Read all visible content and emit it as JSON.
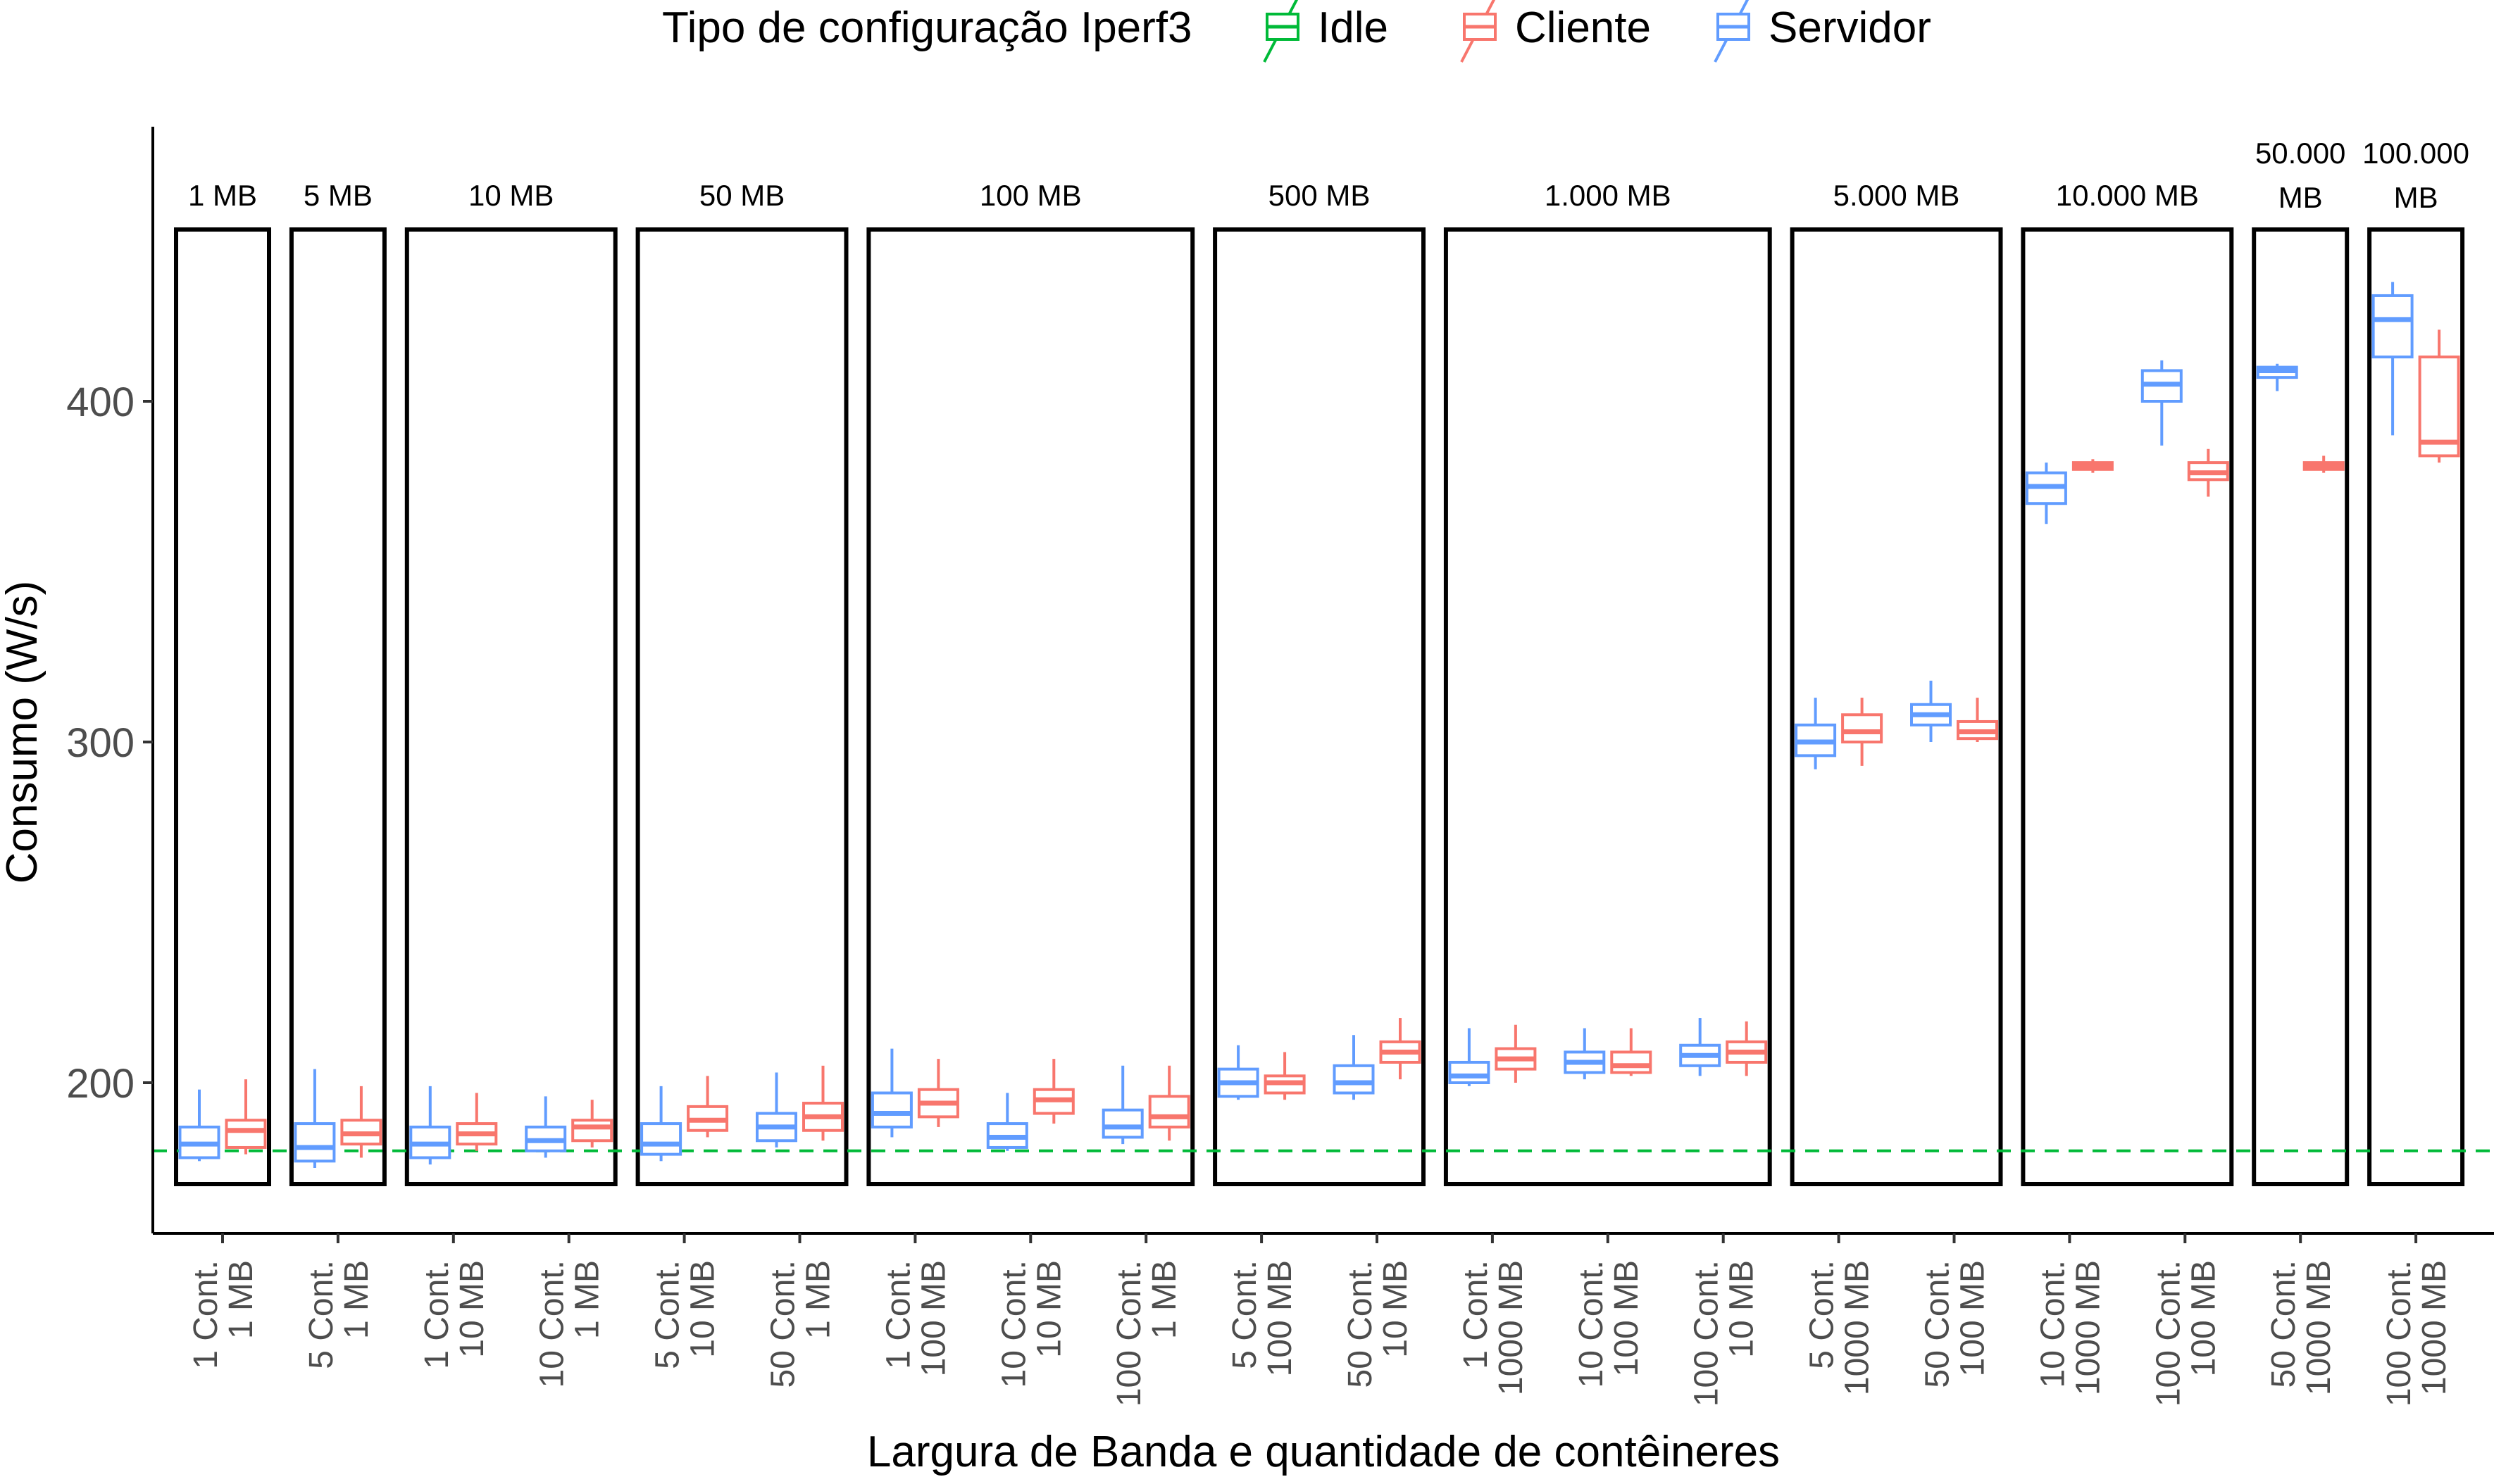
{
  "chart_data": {
    "type": "boxplot",
    "title": "",
    "xlabel": "Largura de Banda e quantidade de contêineres",
    "ylabel": "Consumo (W/s)",
    "y_ticks": [
      200,
      300,
      400
    ],
    "ylim": [
      152,
      478
    ],
    "grid": false,
    "idle_reference": {
      "series": "Idle",
      "value": 180
    },
    "legend": {
      "position": "top",
      "title": "Tipo de configuração Iperf3",
      "entries": [
        {
          "name": "Idle",
          "color": "#00BA38"
        },
        {
          "name": "Cliente",
          "color": "#F8766D"
        },
        {
          "name": "Servidor",
          "color": "#619CFF"
        }
      ]
    },
    "categories": [
      {
        "line1": "1 Cont.",
        "line2": "1 MB"
      },
      {
        "line1": "5 Cont.",
        "line2": "1 MB"
      },
      {
        "line1": "1 Cont.",
        "line2": "10 MB"
      },
      {
        "line1": "10 Cont.",
        "line2": "1 MB"
      },
      {
        "line1": "5 Cont.",
        "line2": "10 MB"
      },
      {
        "line1": "50 Cont.",
        "line2": "1 MB"
      },
      {
        "line1": "1 Cont.",
        "line2": "100 MB"
      },
      {
        "line1": "10 Cont.",
        "line2": "10 MB"
      },
      {
        "line1": "100 Cont.",
        "line2": "1 MB"
      },
      {
        "line1": "5 Cont.",
        "line2": "100 MB"
      },
      {
        "line1": "50 Cont.",
        "line2": "10 MB"
      },
      {
        "line1": "1 Cont.",
        "line2": "1000 MB"
      },
      {
        "line1": "10 Cont.",
        "line2": "100 MB"
      },
      {
        "line1": "100 Cont.",
        "line2": "10 MB"
      },
      {
        "line1": "5 Cont.",
        "line2": "1000 MB"
      },
      {
        "line1": "50 Cont.",
        "line2": "100 MB"
      },
      {
        "line1": "10 Cont.",
        "line2": "1000 MB"
      },
      {
        "line1": "100 Cont.",
        "line2": "100 MB"
      },
      {
        "line1": "50 Cont.",
        "line2": "1000 MB"
      },
      {
        "line1": "100 Cont.",
        "line2": "1000 MB"
      }
    ],
    "groups": [
      {
        "label": [
          "1 MB"
        ],
        "categories": [
          0
        ]
      },
      {
        "label": [
          "5 MB"
        ],
        "categories": [
          1
        ]
      },
      {
        "label": [
          "10 MB"
        ],
        "categories": [
          2,
          3
        ]
      },
      {
        "label": [
          "50 MB"
        ],
        "categories": [
          4,
          5
        ]
      },
      {
        "label": [
          "100 MB"
        ],
        "categories": [
          6,
          7,
          8
        ]
      },
      {
        "label": [
          "500 MB"
        ],
        "categories": [
          9,
          10
        ]
      },
      {
        "label": [
          "1.000 MB"
        ],
        "categories": [
          11,
          12,
          13
        ]
      },
      {
        "label": [
          "5.000 MB"
        ],
        "categories": [
          14,
          15
        ]
      },
      {
        "label": [
          "10.000 MB"
        ],
        "categories": [
          16,
          17
        ]
      },
      {
        "label": [
          "50.000",
          "MB"
        ],
        "categories": [
          18
        ]
      },
      {
        "label": [
          "100.000",
          "MB"
        ],
        "categories": [
          19
        ]
      }
    ],
    "series": [
      {
        "name": "Servidor",
        "color": "#619CFF",
        "boxes": [
          {
            "min": 177,
            "q1": 178,
            "median": 182,
            "q3": 187,
            "max": 198
          },
          {
            "min": 175,
            "q1": 177,
            "median": 181,
            "q3": 188,
            "max": 204
          },
          {
            "min": 176,
            "q1": 178,
            "median": 182,
            "q3": 187,
            "max": 199
          },
          {
            "min": 178,
            "q1": 180,
            "median": 183,
            "q3": 187,
            "max": 196
          },
          {
            "min": 177,
            "q1": 179,
            "median": 182,
            "q3": 188,
            "max": 199
          },
          {
            "min": 181,
            "q1": 183,
            "median": 187,
            "q3": 191,
            "max": 203
          },
          {
            "min": 184,
            "q1": 187,
            "median": 191,
            "q3": 197,
            "max": 210
          },
          {
            "min": 180,
            "q1": 181,
            "median": 184,
            "q3": 188,
            "max": 197
          },
          {
            "min": 182,
            "q1": 184,
            "median": 187,
            "q3": 192,
            "max": 205
          },
          {
            "min": 195,
            "q1": 196,
            "median": 200,
            "q3": 204,
            "max": 211
          },
          {
            "min": 195,
            "q1": 197,
            "median": 200,
            "q3": 205,
            "max": 214
          },
          {
            "min": 199,
            "q1": 200,
            "median": 202,
            "q3": 206,
            "max": 216
          },
          {
            "min": 201,
            "q1": 203,
            "median": 206,
            "q3": 209,
            "max": 216
          },
          {
            "min": 202,
            "q1": 205,
            "median": 208,
            "q3": 211,
            "max": 219
          },
          {
            "min": 292,
            "q1": 296,
            "median": 300,
            "q3": 305,
            "max": 313
          },
          {
            "min": 300,
            "q1": 305,
            "median": 308,
            "q3": 311,
            "max": 318
          },
          {
            "min": 364,
            "q1": 370,
            "median": 375,
            "q3": 379,
            "max": 382
          },
          {
            "min": 387,
            "q1": 400,
            "median": 405,
            "q3": 409,
            "max": 412
          },
          {
            "min": 403,
            "q1": 407,
            "median": 409,
            "q3": 410,
            "max": 411
          },
          {
            "min": 390,
            "q1": 413,
            "median": 424,
            "q3": 431,
            "max": 435
          }
        ]
      },
      {
        "name": "Cliente",
        "color": "#F8766D",
        "boxes": [
          {
            "min": 179,
            "q1": 181,
            "median": 186,
            "q3": 189,
            "max": 201
          },
          {
            "min": 178,
            "q1": 182,
            "median": 185,
            "q3": 189,
            "max": 199
          },
          {
            "min": 180,
            "q1": 182,
            "median": 185,
            "q3": 188,
            "max": 197
          },
          {
            "min": 181,
            "q1": 183,
            "median": 187,
            "q3": 189,
            "max": 195
          },
          {
            "min": 184,
            "q1": 186,
            "median": 189,
            "q3": 193,
            "max": 202
          },
          {
            "min": 183,
            "q1": 186,
            "median": 190,
            "q3": 194,
            "max": 205
          },
          {
            "min": 187,
            "q1": 190,
            "median": 194,
            "q3": 198,
            "max": 207
          },
          {
            "min": 188,
            "q1": 191,
            "median": 195,
            "q3": 198,
            "max": 207
          },
          {
            "min": 183,
            "q1": 187,
            "median": 190,
            "q3": 196,
            "max": 205
          },
          {
            "min": 195,
            "q1": 197,
            "median": 200,
            "q3": 202,
            "max": 209
          },
          {
            "min": 201,
            "q1": 206,
            "median": 209,
            "q3": 212,
            "max": 219
          },
          {
            "min": 200,
            "q1": 204,
            "median": 207,
            "q3": 210,
            "max": 217
          },
          {
            "min": 202,
            "q1": 203,
            "median": 205,
            "q3": 209,
            "max": 216
          },
          {
            "min": 202,
            "q1": 206,
            "median": 209,
            "q3": 212,
            "max": 218
          },
          {
            "min": 293,
            "q1": 300,
            "median": 303,
            "q3": 308,
            "max": 313
          },
          {
            "min": 300,
            "q1": 301,
            "median": 303,
            "q3": 306,
            "max": 313
          },
          {
            "min": 379,
            "q1": 380,
            "median": 381,
            "q3": 382,
            "max": 383
          },
          {
            "min": 372,
            "q1": 377,
            "median": 379,
            "q3": 382,
            "max": 386
          },
          {
            "min": 379,
            "q1": 380,
            "median": 381,
            "q3": 382,
            "max": 384
          },
          {
            "min": 382,
            "q1": 384,
            "median": 388,
            "q3": 413,
            "max": 421
          }
        ]
      }
    ]
  }
}
